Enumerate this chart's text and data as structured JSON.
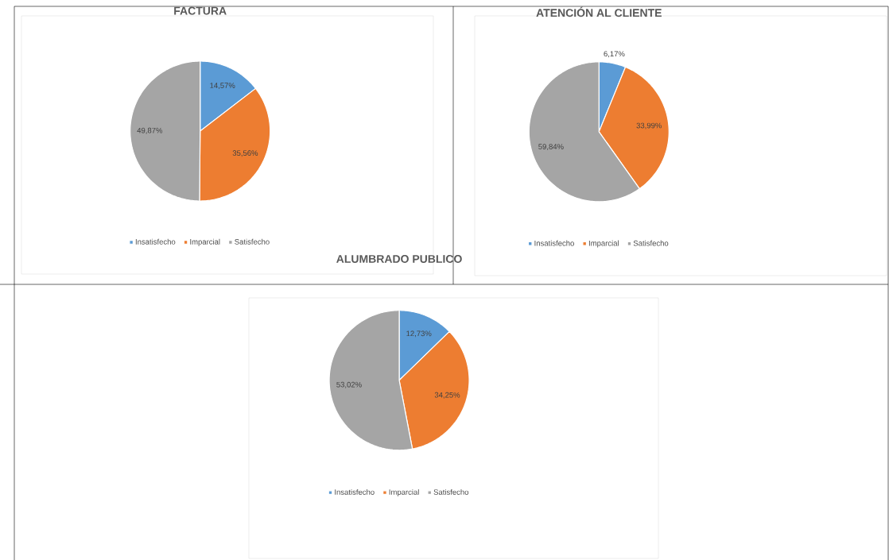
{
  "chart_data": [
    {
      "type": "pie",
      "title": "FACTURA",
      "categories": [
        "Insatisfecho",
        "Imparcial",
        "Satisfecho"
      ],
      "values": [
        14.57,
        35.56,
        49.87
      ],
      "value_labels": [
        "14,57%",
        "35,56%",
        "49,87%"
      ],
      "colors": [
        "#5b9bd5",
        "#ed7d31",
        "#a5a5a5"
      ],
      "legend": "bottom"
    },
    {
      "type": "pie",
      "title": "ATENCIÓN AL CLIENTE",
      "categories": [
        "Insatisfecho",
        "Imparcial",
        "Satisfecho"
      ],
      "values": [
        6.17,
        33.99,
        59.84
      ],
      "value_labels": [
        "6,17%",
        "33,99%",
        "59,84%"
      ],
      "colors": [
        "#5b9bd5",
        "#ed7d31",
        "#a5a5a5"
      ],
      "legend": "bottom"
    },
    {
      "type": "pie",
      "title": "ALUMBRADO PUBLICO",
      "categories": [
        "Insatisfecho",
        "Imparcial",
        "Satisfecho"
      ],
      "values": [
        12.73,
        34.25,
        53.02
      ],
      "value_labels": [
        "12,73%",
        "34,25%",
        "53,02%"
      ],
      "colors": [
        "#5b9bd5",
        "#ed7d31",
        "#a5a5a5"
      ],
      "legend": "bottom"
    }
  ]
}
